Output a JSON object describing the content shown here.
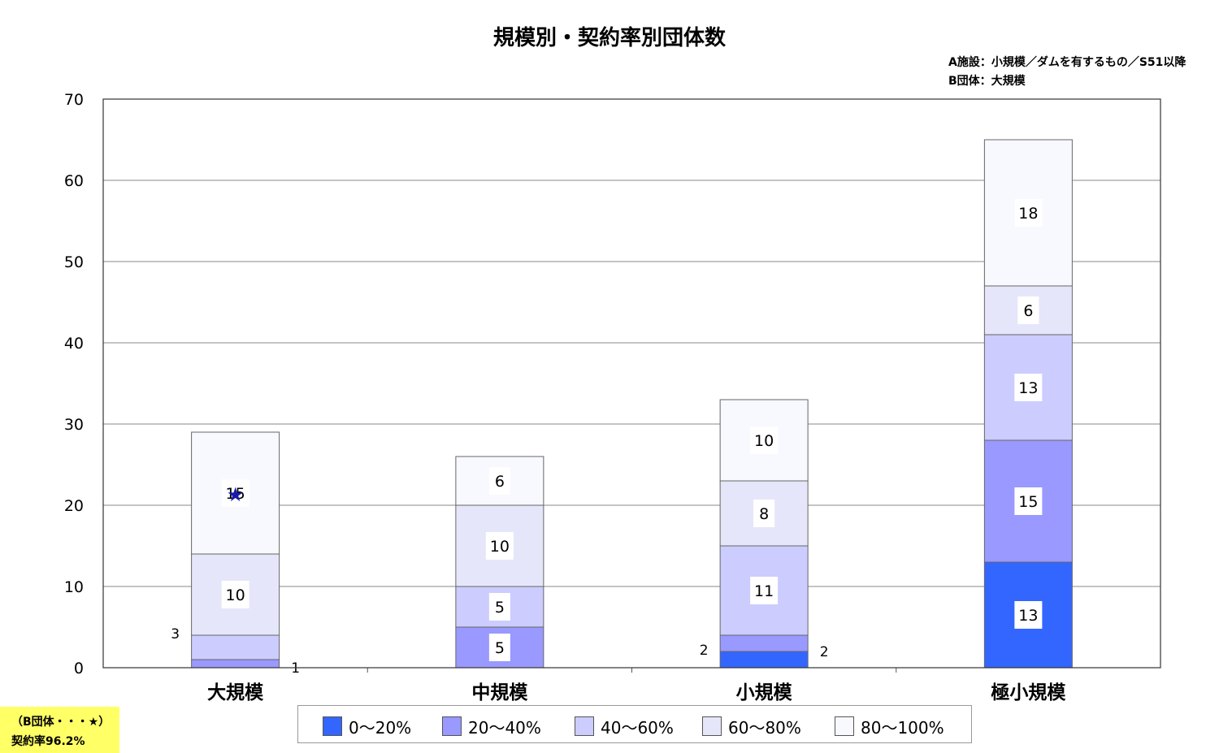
{
  "chart_data": {
    "type": "bar",
    "stacked": true,
    "title": "規模別・契約率別団体数",
    "notes": [
      "A施設：小規模／ダムを有するもの／S51以降",
      "B団体：大規模"
    ],
    "categories": [
      "大規模",
      "中規模",
      "小規模",
      "極小規模"
    ],
    "ylim": [
      0,
      70
    ],
    "yticks": [
      0,
      10,
      20,
      30,
      40,
      50,
      60,
      70
    ],
    "grid": true,
    "legend_position": "bottom",
    "series": [
      {
        "name": "0〜20%",
        "color": "#3366ff",
        "values": [
          0,
          0,
          2,
          13
        ]
      },
      {
        "name": "20〜40%",
        "color": "#9999ff",
        "values": [
          1,
          5,
          2,
          15
        ]
      },
      {
        "name": "40〜60%",
        "color": "#ccccff",
        "values": [
          3,
          5,
          11,
          13
        ]
      },
      {
        "name": "60〜80%",
        "color": "#e6e6fa",
        "values": [
          10,
          10,
          8,
          6
        ]
      },
      {
        "name": "80〜100%",
        "color": "#f8f8ff",
        "values": [
          15,
          6,
          10,
          18
        ]
      }
    ],
    "annotations": [
      {
        "category": "大規模",
        "series": "80〜100%",
        "marker": "★",
        "color": "#1a1aa8"
      }
    ],
    "note_box": {
      "line1": "（B団体・・・★）",
      "line2": "契約率96.2%",
      "color": "#ffff66"
    }
  }
}
